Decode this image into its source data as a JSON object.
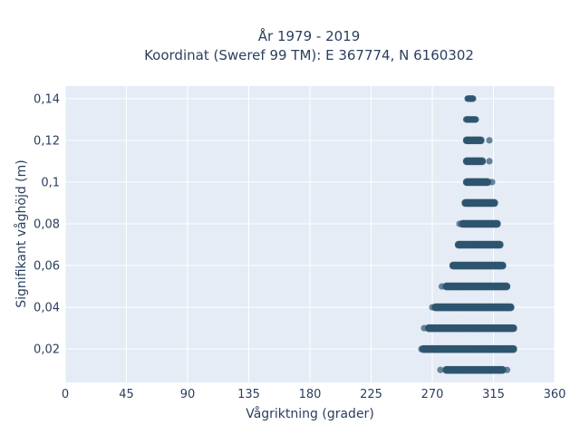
{
  "chart_data": {
    "type": "scatter",
    "title_lines": [
      "År 1979 - 2019",
      "Koordinat (Sweref 99 TM): E 367774, N 6160302"
    ],
    "xlabel": "Vågriktning (grader)",
    "ylabel": "Signifikant våghöjd (m)",
    "xlim": [
      0,
      360
    ],
    "ylim": [
      0.004,
      0.146
    ],
    "xticks": [
      0,
      45,
      90,
      135,
      180,
      225,
      270,
      315,
      360
    ],
    "yticks": [
      0.02,
      0.04,
      0.06,
      0.08,
      0.1,
      0.12,
      0.14
    ],
    "ytick_labels": [
      "0,02",
      "0,04",
      "0,06",
      "0,08",
      "0,1",
      "0,12",
      "0,14"
    ],
    "grid": true,
    "background": "#e5ecf6",
    "marker_color": "#2f5670",
    "bands": [
      {
        "y": 0.01,
        "xmin": 280,
        "xmax": 322,
        "outliers": [
          276,
          325
        ]
      },
      {
        "y": 0.02,
        "xmin": 263,
        "xmax": 330,
        "outliers": [
          262
        ]
      },
      {
        "y": 0.03,
        "xmin": 267,
        "xmax": 330,
        "outliers": [
          264
        ]
      },
      {
        "y": 0.04,
        "xmin": 272,
        "xmax": 328,
        "outliers": [
          270
        ]
      },
      {
        "y": 0.05,
        "xmin": 280,
        "xmax": 325,
        "outliers": [
          277
        ]
      },
      {
        "y": 0.06,
        "xmin": 285,
        "xmax": 322,
        "outliers": []
      },
      {
        "y": 0.07,
        "xmin": 289,
        "xmax": 320,
        "outliers": []
      },
      {
        "y": 0.08,
        "xmin": 292,
        "xmax": 318,
        "outliers": [
          290
        ]
      },
      {
        "y": 0.09,
        "xmin": 294,
        "xmax": 316,
        "outliers": []
      },
      {
        "y": 0.1,
        "xmin": 295,
        "xmax": 311,
        "outliers": [
          314
        ]
      },
      {
        "y": 0.11,
        "xmin": 295,
        "xmax": 307,
        "outliers": [
          312
        ]
      },
      {
        "y": 0.12,
        "xmin": 295,
        "xmax": 306,
        "outliers": [
          312
        ]
      },
      {
        "y": 0.13,
        "xmin": 295,
        "xmax": 302,
        "outliers": []
      },
      {
        "y": 0.14,
        "xmin": 296,
        "xmax": 300,
        "outliers": []
      }
    ]
  }
}
